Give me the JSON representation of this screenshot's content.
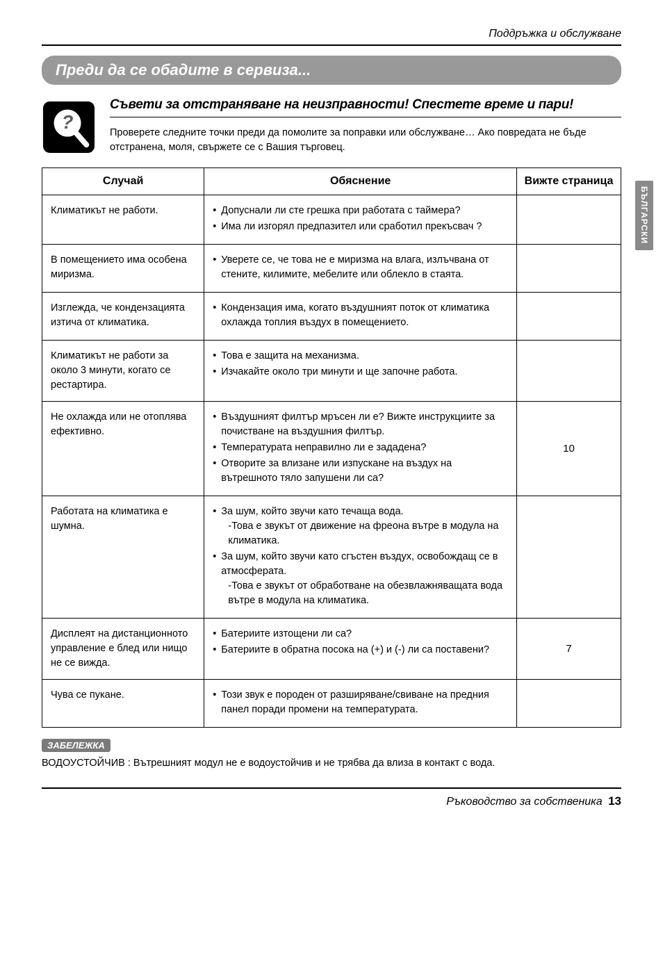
{
  "header": {
    "section": "Поддръжка и обслужване"
  },
  "titleBar": "Преди да се обадите в сервиза...",
  "subtitle": "Съвети за отстраняване на неизправности! Спестете време и пари!",
  "introPara": "Проверете следните точки преди да помолите за поправки или обслужване… Ако повредата не бъде отстранена, моля, свържете се с Вашия търговец.",
  "sideTab": "БЪЛГАРСКИ",
  "table": {
    "columns": [
      "Случай",
      "Обяснение",
      "Вижте страница"
    ],
    "rows": [
      {
        "case": "Климатикът не работи.",
        "expl": [
          "Допуснали ли сте грешка при работата с таймера?",
          "Има ли изгорял предпазител или сработил прекъсвач ?"
        ],
        "page": ""
      },
      {
        "case": "В помещението има особена миризма.",
        "expl": [
          "Уверете се, че това не е миризма на влага, излъчвана от стените, килимите, мебелите или облекло в стаята."
        ],
        "page": ""
      },
      {
        "case": "Изглежда, че кондензацията изтича от климатика.",
        "expl": [
          "Кондензация има, когато въздушният поток от климатика охлажда топлия въздух в помещението."
        ],
        "page": ""
      },
      {
        "case": "Климатикът не работи за около 3 минути, когато се рестартира.",
        "expl": [
          "Това е защита на механизма.",
          "Изчакайте около три минути и ще започне работа."
        ],
        "page": ""
      },
      {
        "case": "Не охлажда или не отоплява ефективно.",
        "expl": [
          "Въздушният филтър мръсен ли е? Вижте инструкциите за почистване на въздушния филтър.",
          "Температурата неправилно ли е зададена?",
          "Отворите за влизане или изпускане на въздух на вътрешното тяло запушени ли са?"
        ],
        "page": "10"
      },
      {
        "case": "Работата на климатика е шумна.",
        "expl": [
          "За шум, който звучи като течаща вода.\n-Това е звукът от движение на фреона вътре в модула на климатика.",
          "За шум, който звучи като сгъстен въздух, освобождащ се в атмосферата.\n-Това е звукът от обработване на обезвлажняващата вода вътре в модула на климатика."
        ],
        "page": ""
      },
      {
        "case": "Дисплеят на дистанционното управление е блед или нищо не се вижда.",
        "expl": [
          "Батериите изтощени ли са?",
          "Батериите в обратна посока на (+) и (-) ли са поставени?"
        ],
        "page": "7"
      },
      {
        "case": "Чува се пукане.",
        "expl": [
          "Този звук е породен от разширяване/свиване на предния панел поради промени на температурата."
        ],
        "page": ""
      }
    ]
  },
  "note": {
    "label": "ЗАБЕЛЕЖКА",
    "text": "ВОДОУСТОЙЧИВ : Вътрешният модул не е водоустойчив и не трябва да влиза в контакт с вода."
  },
  "footer": {
    "title": "Ръководство за собственика",
    "page": "13"
  },
  "icon": {
    "name": "question-magnifier-icon",
    "bg": "#000000",
    "lens_fill": "#ffffff",
    "q_color": "#5a5a5a",
    "border_radius": 10
  }
}
